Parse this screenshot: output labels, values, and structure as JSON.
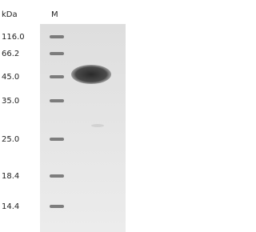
{
  "header": {
    "unit": "kDa",
    "lane": "M"
  },
  "markers": [
    "116.0",
    "66.2",
    "45.0",
    "35.0",
    "25.0",
    "18.4",
    "14.4"
  ]
}
